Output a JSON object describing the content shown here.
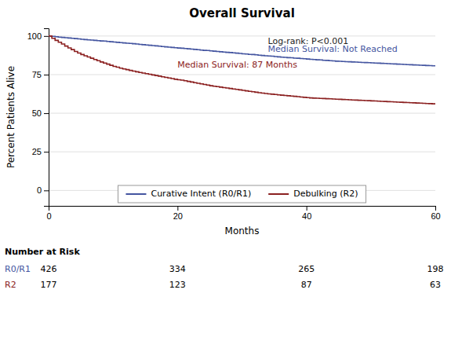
{
  "chart_data": {
    "type": "step",
    "title": "Overall Survival",
    "x_label": "Months",
    "y_label": "Percent Patients Alive",
    "xlim": [
      0,
      60
    ],
    "ylim": [
      -10,
      105
    ],
    "xticks": [
      0,
      20,
      40,
      60
    ],
    "yticks": [
      0,
      25,
      50,
      75,
      100
    ],
    "grid": "y",
    "legend": "bottom",
    "x": [
      0,
      0.5,
      1,
      1.5,
      2,
      2.5,
      3,
      3.5,
      4,
      4.5,
      5,
      5.5,
      6,
      6.5,
      7,
      7.5,
      8,
      8.5,
      9,
      9.5,
      10,
      10.5,
      11,
      11.5,
      12,
      12.5,
      13,
      13.5,
      14,
      14.5,
      15,
      15.5,
      16,
      16.5,
      17,
      17.5,
      18,
      18.5,
      19,
      19.5,
      20,
      20.5,
      21,
      21.5,
      22,
      22.5,
      23,
      23.5,
      24,
      24.5,
      25,
      25.5,
      26,
      26.5,
      27,
      27.5,
      28,
      28.5,
      29,
      29.5,
      30,
      30.5,
      31,
      31.5,
      32,
      32.5,
      33,
      33.5,
      34,
      34.5,
      35,
      35.5,
      36,
      36.5,
      37,
      37.5,
      38,
      38.5,
      39,
      39.5,
      40,
      40.5,
      41,
      41.5,
      42,
      42.5,
      43,
      43.5,
      44,
      44.5,
      45,
      45.5,
      46,
      46.5,
      47,
      47.5,
      48,
      48.5,
      49,
      49.5,
      50,
      50.5,
      51,
      51.5,
      52,
      52.5,
      53,
      53.5,
      54,
      54.5,
      55,
      55.5,
      56,
      56.5,
      57,
      57.5,
      58,
      58.5,
      59,
      59.5,
      60
    ],
    "series": [
      {
        "name": "Curative Intent (R0/R1)",
        "color": "#4455a0",
        "values": [
          100,
          99.8,
          99.5,
          99.3,
          99.1,
          98.9,
          98.7,
          98.5,
          98.3,
          98.1,
          97.9,
          97.7,
          97.5,
          97.4,
          97.2,
          97.0,
          96.8,
          96.7,
          96.5,
          96.3,
          96.1,
          95.9,
          95.7,
          95.5,
          95.3,
          95.2,
          95.0,
          94.8,
          94.6,
          94.4,
          94.2,
          94.0,
          93.8,
          93.6,
          93.4,
          93.2,
          93.0,
          92.8,
          92.6,
          92.4,
          92.2,
          92.1,
          91.9,
          91.7,
          91.5,
          91.3,
          91.1,
          90.9,
          90.7,
          90.6,
          90.4,
          90.2,
          90.0,
          89.8,
          89.6,
          89.4,
          89.3,
          89.1,
          88.9,
          88.7,
          88.5,
          88.3,
          88.1,
          88.0,
          87.8,
          87.6,
          87.4,
          87.2,
          87.1,
          86.9,
          86.7,
          86.5,
          86.3,
          86.2,
          86.0,
          85.9,
          85.7,
          85.6,
          85.4,
          85.3,
          85.1,
          84.9,
          84.8,
          84.6,
          84.5,
          84.3,
          84.2,
          84.0,
          83.9,
          83.7,
          83.6,
          83.5,
          83.4,
          83.3,
          83.2,
          83.1,
          83.0,
          82.9,
          82.8,
          82.7,
          82.6,
          82.5,
          82.4,
          82.3,
          82.2,
          82.1,
          82.0,
          81.9,
          81.8,
          81.7,
          81.6,
          81.5,
          81.4,
          81.3,
          81.2,
          81.1,
          81.0,
          80.9,
          80.8,
          80.7,
          80.6
        ]
      },
      {
        "name": "Debulking (R2)",
        "color": "#8b2020",
        "values": [
          100,
          98.5,
          97.2,
          96.0,
          94.8,
          93.5,
          92.3,
          91.2,
          90.0,
          89.0,
          88.0,
          87.2,
          86.4,
          85.6,
          84.8,
          84.0,
          83.2,
          82.5,
          81.8,
          81.0,
          80.3,
          79.8,
          79.2,
          78.7,
          78.2,
          77.7,
          77.3,
          76.8,
          76.4,
          76.0,
          75.6,
          75.2,
          74.8,
          74.4,
          74.0,
          73.6,
          73.2,
          72.8,
          72.4,
          72.0,
          71.7,
          71.4,
          71.0,
          70.6,
          70.2,
          69.8,
          69.4,
          69.0,
          68.6,
          68.2,
          67.8,
          67.5,
          67.2,
          66.9,
          66.6,
          66.3,
          66.0,
          65.7,
          65.4,
          65.1,
          64.8,
          64.5,
          64.2,
          63.9,
          63.6,
          63.3,
          63.0,
          62.8,
          62.5,
          62.3,
          62.1,
          61.9,
          61.7,
          61.5,
          61.3,
          61.1,
          60.9,
          60.7,
          60.5,
          60.3,
          60.1,
          59.9,
          59.8,
          59.7,
          59.6,
          59.5,
          59.4,
          59.3,
          59.2,
          59.1,
          59.0,
          58.9,
          58.8,
          58.7,
          58.6,
          58.5,
          58.4,
          58.3,
          58.2,
          58.1,
          58.0,
          57.9,
          57.8,
          57.7,
          57.6,
          57.5,
          57.4,
          57.3,
          57.2,
          57.1,
          57.0,
          56.9,
          56.8,
          56.7,
          56.6,
          56.5,
          56.4,
          56.3,
          56.2,
          56.1,
          56.0
        ]
      }
    ],
    "annotations": [
      "Log-rank: P<0.001",
      "Median Survival: Not Reached",
      "Median Survival: 87 Months"
    ],
    "risk_table": {
      "title": "Number at Risk",
      "x": [
        0,
        20,
        40,
        60
      ],
      "rows": [
        {
          "label": "R0/R1",
          "values": [
            426,
            334,
            265,
            198
          ]
        },
        {
          "label": "R2",
          "values": [
            177,
            123,
            87,
            63
          ]
        }
      ]
    }
  }
}
